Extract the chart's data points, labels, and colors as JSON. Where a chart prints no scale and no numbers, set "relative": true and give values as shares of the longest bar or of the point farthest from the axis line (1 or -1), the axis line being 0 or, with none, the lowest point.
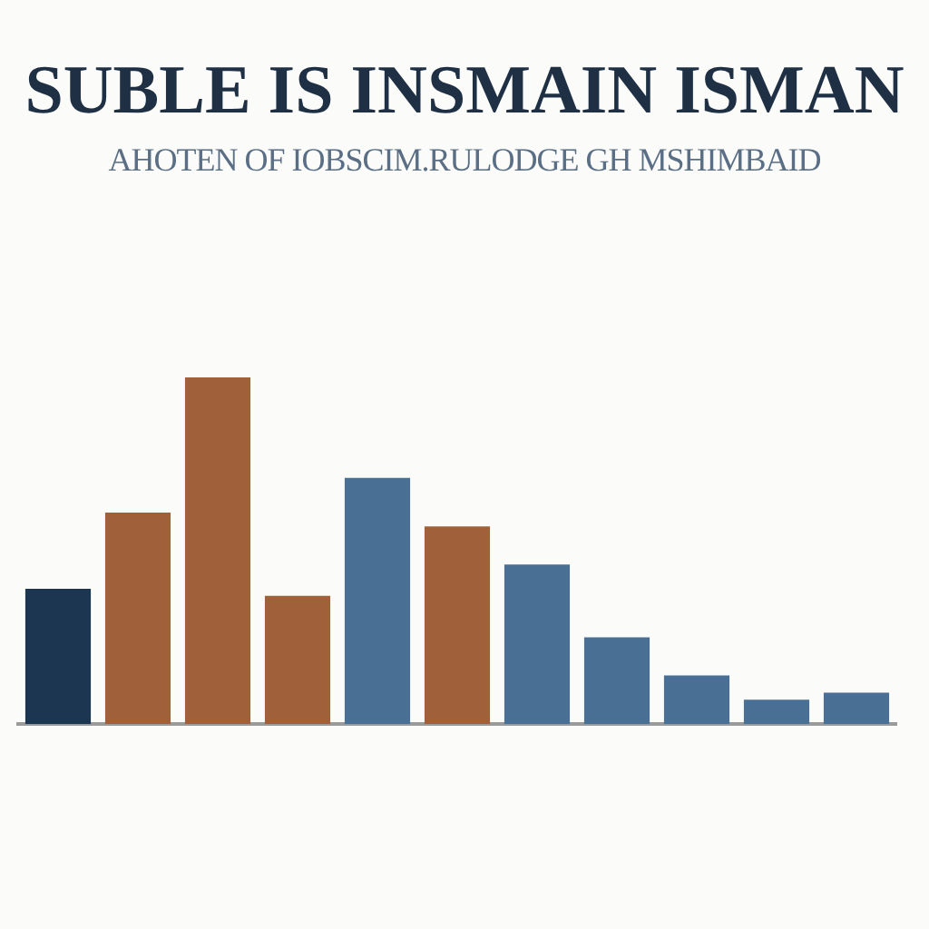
{
  "chart_data": {
    "type": "bar",
    "title": "SUBLE IS INSMAIN ISMAN",
    "subtitle": "AHOTEN OF IOBSCIM.RULODGE GH MSHIMBAID",
    "categories": [
      null,
      null,
      null,
      null,
      null,
      null,
      null,
      null,
      null,
      null,
      null
    ],
    "values": [
      0.39,
      0.61,
      1,
      0.37,
      0.71,
      0.57,
      0.46,
      0.25,
      0.14,
      0.07,
      0.09
    ],
    "colors": [
      "#1c3550",
      "#a0603a",
      "#a0603a",
      "#a0603a",
      "#4a6f94",
      "#a0603a",
      "#4a6f94",
      "#4a6f94",
      "#4a6f94",
      "#4a6f94",
      "#4a6f94"
    ],
    "relative": true
  }
}
